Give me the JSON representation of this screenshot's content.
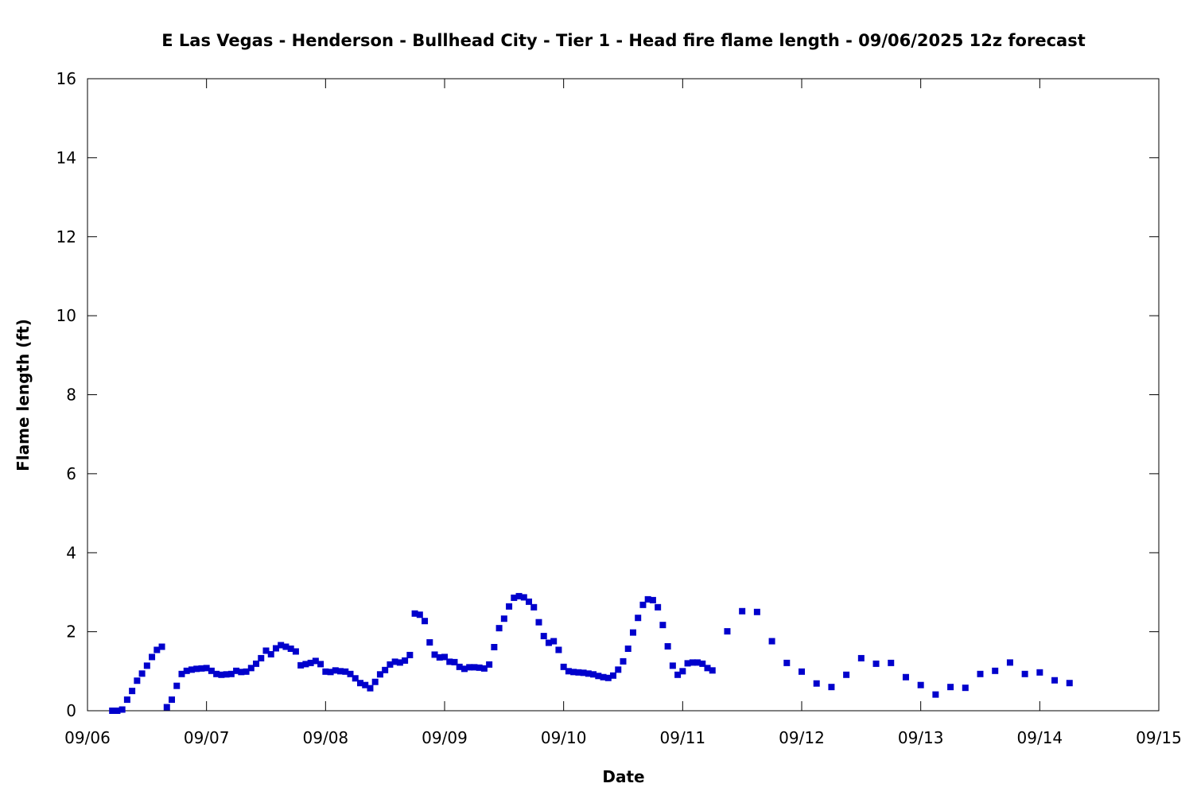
{
  "chart_data": {
    "type": "scatter",
    "title": "E Las Vegas - Henderson - Bullhead City - Tier 1 - Head fire flame length - 09/06/2025 12z forecast",
    "xlabel": "Date",
    "ylabel": "Flame length (ft)",
    "xlim": [
      "09/06 00:00",
      "09/15 00:00"
    ],
    "ylim": [
      0,
      16
    ],
    "xticks": [
      "09/06",
      "09/07",
      "09/08",
      "09/09",
      "09/10",
      "09/11",
      "09/12",
      "09/13",
      "09/14",
      "09/15"
    ],
    "yticks": [
      0,
      2,
      4,
      6,
      8,
      10,
      12,
      14,
      16
    ],
    "grid": false,
    "marker_color": "#0000cc",
    "points": [
      [
        "09/06 05:00",
        0.0
      ],
      [
        "09/06 06:00",
        0.0
      ],
      [
        "09/06 07:00",
        0.03
      ],
      [
        "09/06 08:00",
        0.28
      ],
      [
        "09/06 09:00",
        0.5
      ],
      [
        "09/06 10:00",
        0.76
      ],
      [
        "09/06 11:00",
        0.94
      ],
      [
        "09/06 12:00",
        1.14
      ],
      [
        "09/06 13:00",
        1.36
      ],
      [
        "09/06 14:00",
        1.54
      ],
      [
        "09/06 15:00",
        1.62
      ],
      [
        "09/06 16:00",
        0.09
      ],
      [
        "09/06 17:00",
        0.28
      ],
      [
        "09/06 18:00",
        0.63
      ],
      [
        "09/06 19:00",
        0.93
      ],
      [
        "09/06 20:00",
        1.01
      ],
      [
        "09/06 21:00",
        1.04
      ],
      [
        "09/06 22:00",
        1.06
      ],
      [
        "09/06 23:00",
        1.07
      ],
      [
        "09/07 00:00",
        1.08
      ],
      [
        "09/07 01:00",
        1.01
      ],
      [
        "09/07 02:00",
        0.93
      ],
      [
        "09/07 03:00",
        0.91
      ],
      [
        "09/07 04:00",
        0.92
      ],
      [
        "09/07 05:00",
        0.93
      ],
      [
        "09/07 06:00",
        1.01
      ],
      [
        "09/07 07:00",
        0.98
      ],
      [
        "09/07 08:00",
        0.99
      ],
      [
        "09/07 09:00",
        1.08
      ],
      [
        "09/07 10:00",
        1.19
      ],
      [
        "09/07 11:00",
        1.33
      ],
      [
        "09/07 12:00",
        1.52
      ],
      [
        "09/07 13:00",
        1.43
      ],
      [
        "09/07 14:00",
        1.58
      ],
      [
        "09/07 15:00",
        1.66
      ],
      [
        "09/07 16:00",
        1.62
      ],
      [
        "09/07 17:00",
        1.57
      ],
      [
        "09/07 18:00",
        1.5
      ],
      [
        "09/07 19:00",
        1.15
      ],
      [
        "09/07 20:00",
        1.18
      ],
      [
        "09/07 21:00",
        1.21
      ],
      [
        "09/07 22:00",
        1.26
      ],
      [
        "09/07 23:00",
        1.18
      ],
      [
        "09/08 00:00",
        0.99
      ],
      [
        "09/08 01:00",
        0.98
      ],
      [
        "09/08 02:00",
        1.02
      ],
      [
        "09/08 03:00",
        1.0
      ],
      [
        "09/08 04:00",
        0.99
      ],
      [
        "09/08 05:00",
        0.93
      ],
      [
        "09/08 06:00",
        0.82
      ],
      [
        "09/08 07:00",
        0.7
      ],
      [
        "09/08 08:00",
        0.65
      ],
      [
        "09/08 09:00",
        0.57
      ],
      [
        "09/08 10:00",
        0.73
      ],
      [
        "09/08 11:00",
        0.92
      ],
      [
        "09/08 12:00",
        1.03
      ],
      [
        "09/08 13:00",
        1.17
      ],
      [
        "09/08 14:00",
        1.24
      ],
      [
        "09/08 15:00",
        1.22
      ],
      [
        "09/08 16:00",
        1.27
      ],
      [
        "09/08 17:00",
        1.41
      ],
      [
        "09/08 18:00",
        2.46
      ],
      [
        "09/08 19:00",
        2.43
      ],
      [
        "09/08 20:00",
        2.27
      ],
      [
        "09/08 21:00",
        1.73
      ],
      [
        "09/08 22:00",
        1.42
      ],
      [
        "09/08 23:00",
        1.35
      ],
      [
        "09/09 00:00",
        1.36
      ],
      [
        "09/09 01:00",
        1.24
      ],
      [
        "09/09 02:00",
        1.23
      ],
      [
        "09/09 03:00",
        1.11
      ],
      [
        "09/09 04:00",
        1.06
      ],
      [
        "09/09 05:00",
        1.1
      ],
      [
        "09/09 06:00",
        1.1
      ],
      [
        "09/09 07:00",
        1.09
      ],
      [
        "09/09 08:00",
        1.07
      ],
      [
        "09/09 09:00",
        1.17
      ],
      [
        "09/09 10:00",
        1.61
      ],
      [
        "09/09 11:00",
        2.09
      ],
      [
        "09/09 12:00",
        2.33
      ],
      [
        "09/09 13:00",
        2.64
      ],
      [
        "09/09 14:00",
        2.86
      ],
      [
        "09/09 15:00",
        2.9
      ],
      [
        "09/09 16:00",
        2.87
      ],
      [
        "09/09 17:00",
        2.76
      ],
      [
        "09/09 18:00",
        2.62
      ],
      [
        "09/09 19:00",
        2.24
      ],
      [
        "09/09 20:00",
        1.89
      ],
      [
        "09/09 21:00",
        1.72
      ],
      [
        "09/09 22:00",
        1.76
      ],
      [
        "09/09 23:00",
        1.54
      ],
      [
        "09/10 00:00",
        1.11
      ],
      [
        "09/10 01:00",
        1.0
      ],
      [
        "09/10 02:00",
        0.98
      ],
      [
        "09/10 03:00",
        0.97
      ],
      [
        "09/10 04:00",
        0.96
      ],
      [
        "09/10 05:00",
        0.94
      ],
      [
        "09/10 06:00",
        0.92
      ],
      [
        "09/10 07:00",
        0.88
      ],
      [
        "09/10 08:00",
        0.85
      ],
      [
        "09/10 09:00",
        0.83
      ],
      [
        "09/10 10:00",
        0.89
      ],
      [
        "09/10 11:00",
        1.04
      ],
      [
        "09/10 12:00",
        1.25
      ],
      [
        "09/10 13:00",
        1.57
      ],
      [
        "09/10 14:00",
        1.98
      ],
      [
        "09/10 15:00",
        2.35
      ],
      [
        "09/10 16:00",
        2.68
      ],
      [
        "09/10 17:00",
        2.82
      ],
      [
        "09/10 18:00",
        2.8
      ],
      [
        "09/10 19:00",
        2.62
      ],
      [
        "09/10 20:00",
        2.17
      ],
      [
        "09/10 21:00",
        1.63
      ],
      [
        "09/10 22:00",
        1.14
      ],
      [
        "09/10 23:00",
        0.91
      ],
      [
        "09/11 00:00",
        1.0
      ],
      [
        "09/11 01:00",
        1.2
      ],
      [
        "09/11 02:00",
        1.22
      ],
      [
        "09/11 03:00",
        1.22
      ],
      [
        "09/11 04:00",
        1.19
      ],
      [
        "09/11 05:00",
        1.08
      ],
      [
        "09/11 06:00",
        1.02
      ],
      [
        "09/11 09:00",
        2.01
      ],
      [
        "09/11 12:00",
        2.52
      ],
      [
        "09/11 15:00",
        2.5
      ],
      [
        "09/11 18:00",
        1.76
      ],
      [
        "09/11 21:00",
        1.21
      ],
      [
        "09/12 00:00",
        0.99
      ],
      [
        "09/12 03:00",
        0.69
      ],
      [
        "09/12 06:00",
        0.6
      ],
      [
        "09/12 09:00",
        0.91
      ],
      [
        "09/12 12:00",
        1.33
      ],
      [
        "09/12 15:00",
        1.19
      ],
      [
        "09/12 18:00",
        1.21
      ],
      [
        "09/12 21:00",
        0.85
      ],
      [
        "09/13 00:00",
        0.65
      ],
      [
        "09/13 03:00",
        0.41
      ],
      [
        "09/13 06:00",
        0.6
      ],
      [
        "09/13 09:00",
        0.58
      ],
      [
        "09/13 12:00",
        0.93
      ],
      [
        "09/13 15:00",
        1.01
      ],
      [
        "09/13 18:00",
        1.22
      ],
      [
        "09/13 21:00",
        0.93
      ],
      [
        "09/14 00:00",
        0.97
      ],
      [
        "09/14 03:00",
        0.77
      ],
      [
        "09/14 06:00",
        0.7
      ]
    ]
  }
}
